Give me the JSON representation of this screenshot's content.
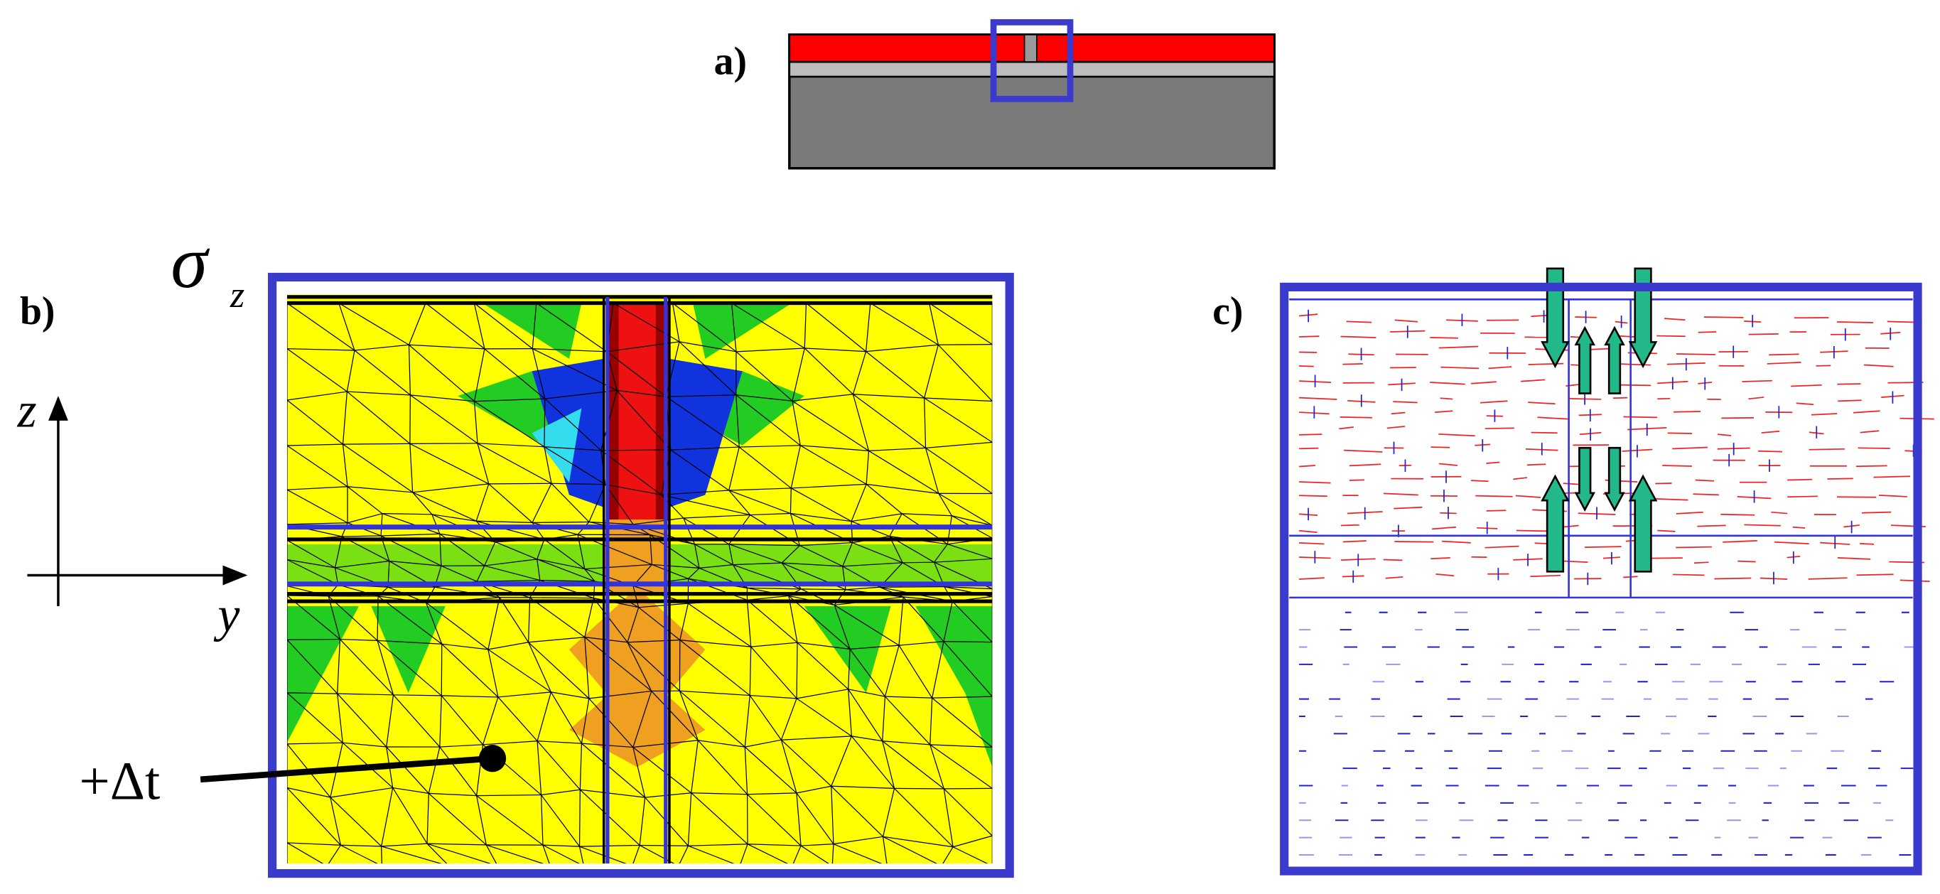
{
  "panels": {
    "a": "a)",
    "b": "b)",
    "c": "c)"
  },
  "stress": {
    "symbol": "σ",
    "subscript": "z"
  },
  "axes": {
    "z": "z",
    "y": "y"
  },
  "annotation": "+Δt"
}
